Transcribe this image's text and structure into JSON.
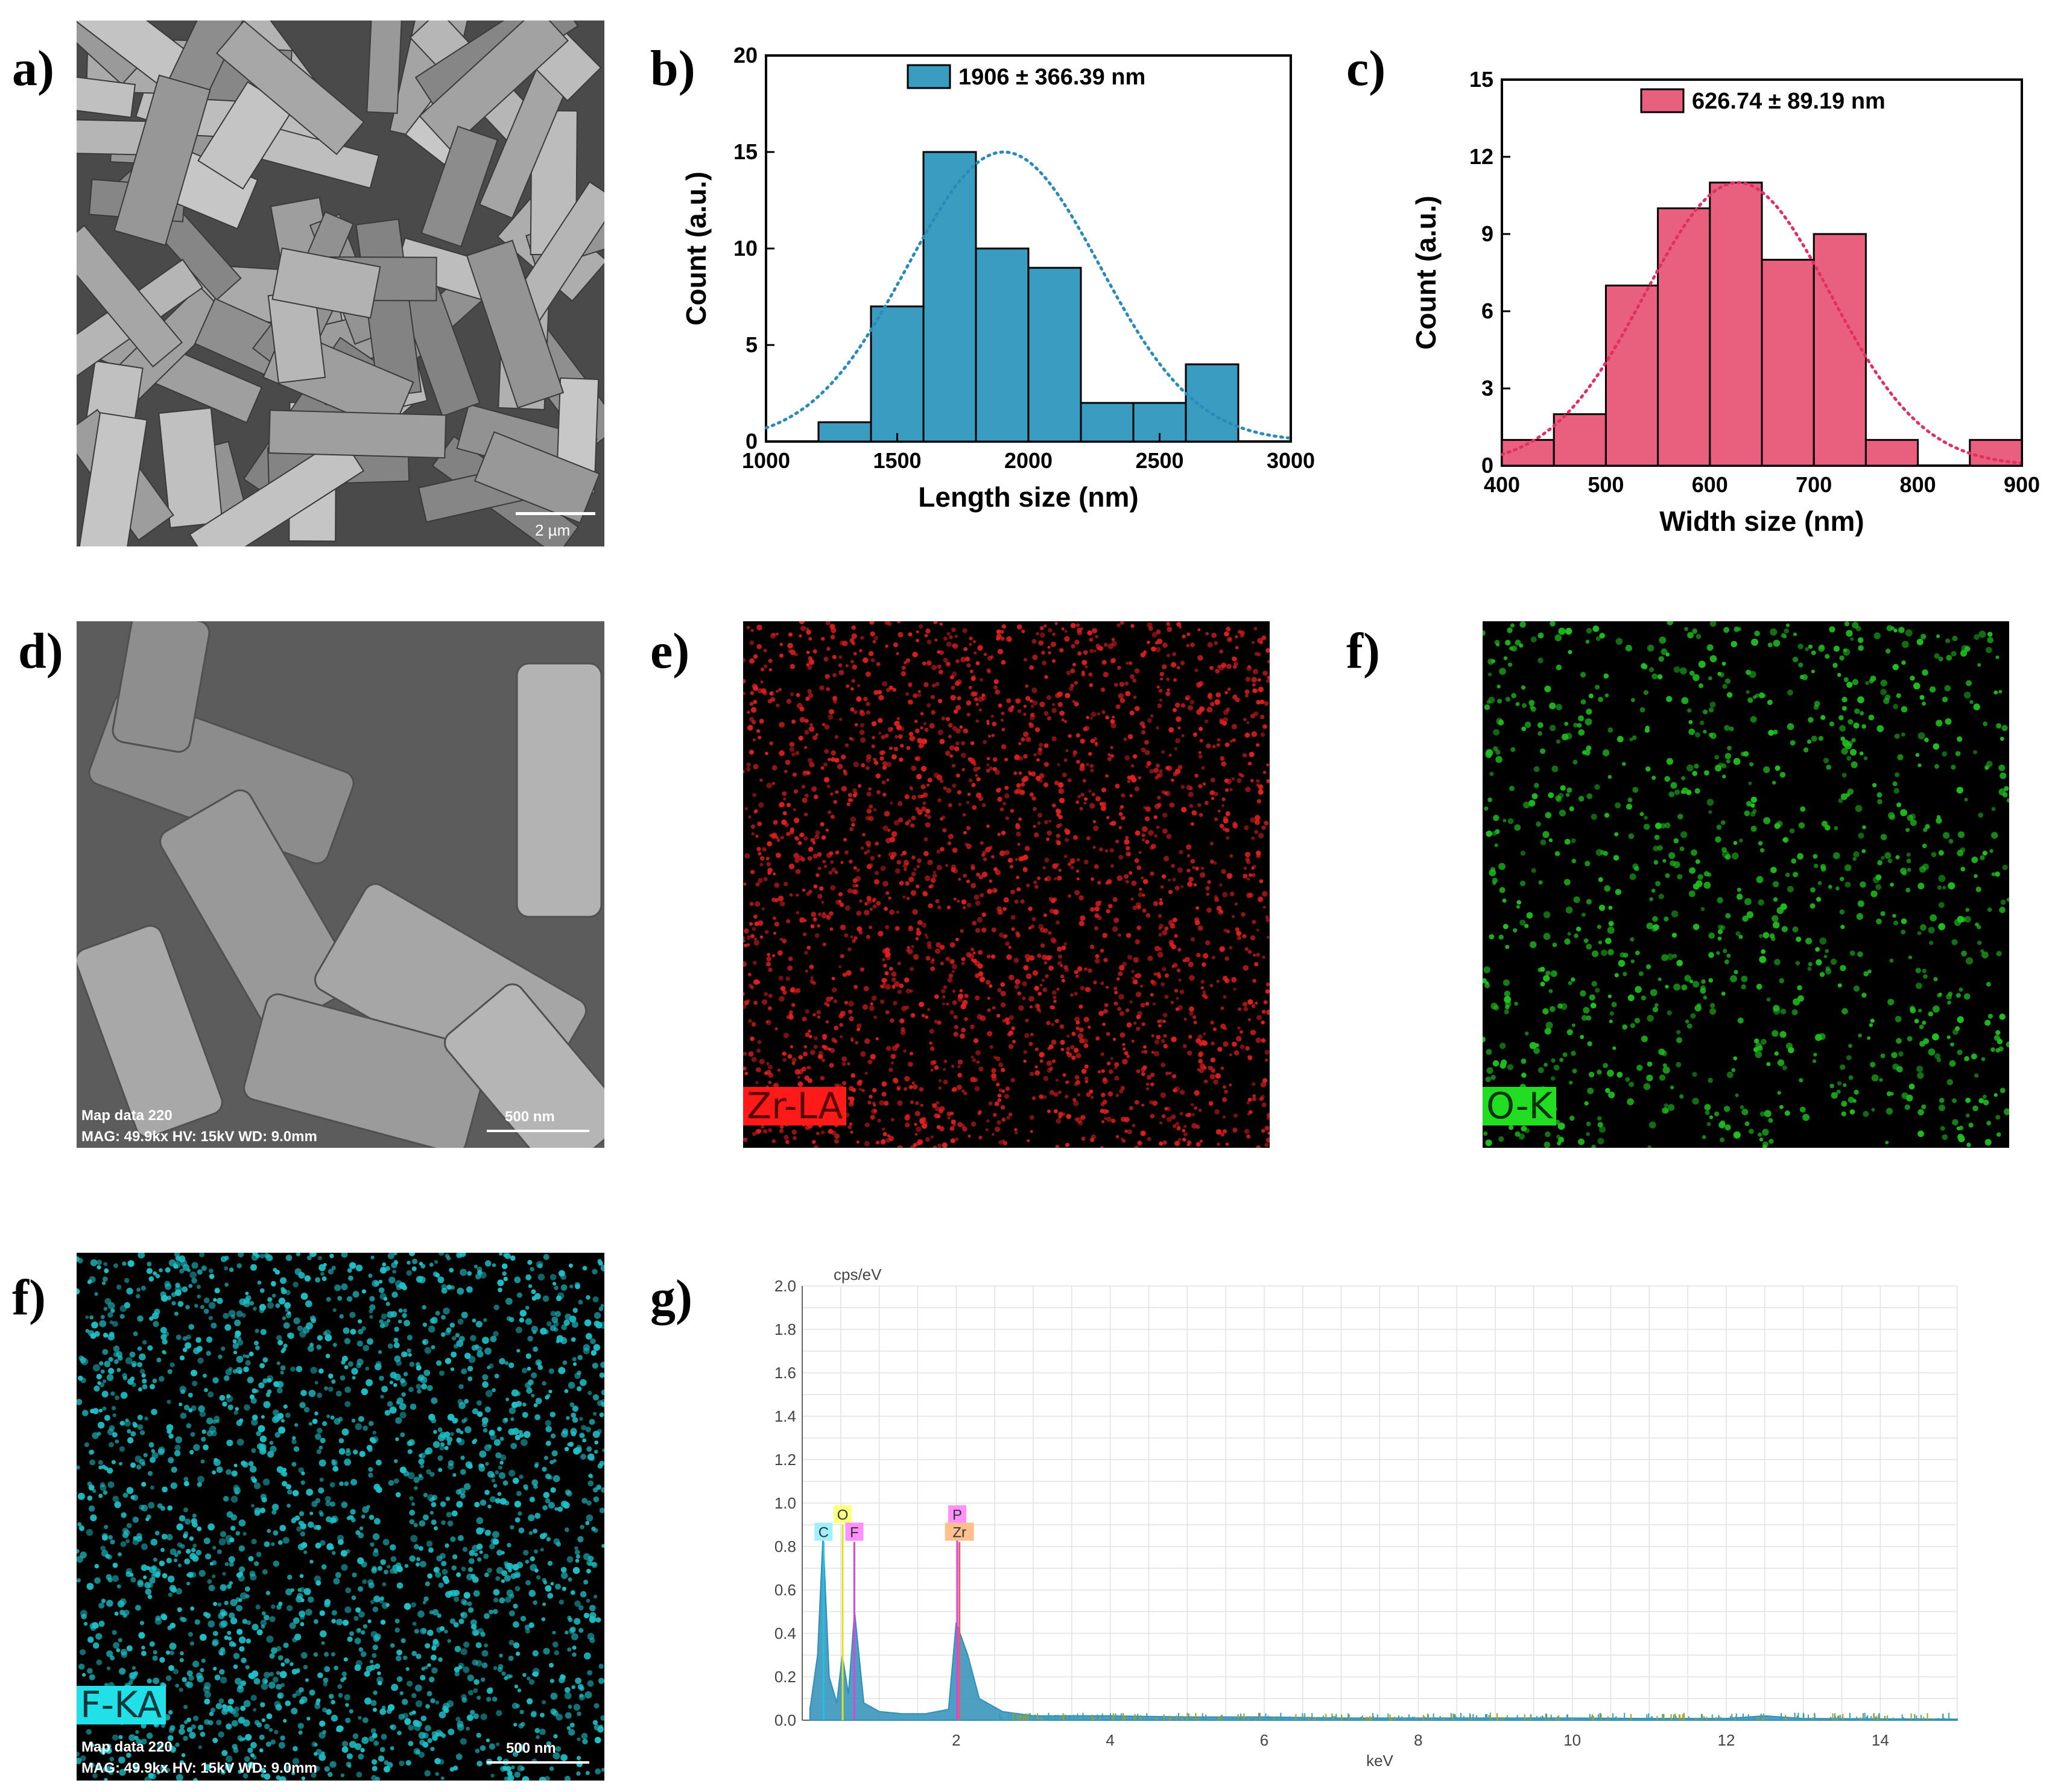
{
  "panel_labels": [
    "a)",
    "b)",
    "c)",
    "d)",
    "e)",
    "f)",
    "f)",
    "g)"
  ],
  "sem_a": {
    "scale_bar": "2 µm"
  },
  "sem_d": {
    "scale_bar": "500 nm",
    "info_line1": "Map data 220",
    "info_line2": "MAG: 49.9kx  HV: 15kV  WD: 9.0mm"
  },
  "map_e": {
    "tag": "Zr-LA",
    "dot_color": "#e02020",
    "tag_bg": "#ff1a1a",
    "tag_fg": "#5a0000"
  },
  "map_f": {
    "tag": "O-K",
    "dot_color": "#20c020",
    "tag_bg": "#22dd22",
    "tag_fg": "#003300"
  },
  "map_f2": {
    "tag": "F-KA",
    "dot_color": "#20c0c8",
    "tag_bg": "#22e0e8",
    "tag_fg": "#003a3c",
    "info_line1": "Map data 220",
    "info_line2": "MAG: 49.9kx  HV: 15kV  WD: 9.0mm",
    "scale_bar": "500 nm"
  },
  "chart_data": [
    {
      "id": "b",
      "type": "bar",
      "xlabel": "Length size (nm)",
      "ylabel": "Count (a.u.)",
      "xlim": [
        1000,
        3000
      ],
      "ylim": [
        0,
        20
      ],
      "xticks": [
        1000,
        1500,
        2000,
        2500,
        3000
      ],
      "yticks": [
        0,
        5,
        10,
        15,
        20
      ],
      "bin_width": 200,
      "bins": [
        1200,
        1400,
        1600,
        1800,
        2000,
        2200,
        2400,
        2600
      ],
      "values": [
        1,
        7,
        15,
        10,
        9,
        2,
        2,
        4
      ],
      "legend": "1906 ± 366.39 nm",
      "legend_position": "top-center",
      "fit": {
        "type": "gaussian",
        "mean": 1906,
        "sd": 366.39,
        "peak": 15
      },
      "color": "#3a9cc0",
      "fit_color": "#2a8ab8"
    },
    {
      "id": "c",
      "type": "bar",
      "xlabel": "Width size (nm)",
      "ylabel": "Count (a.u.)",
      "xlim": [
        400,
        900
      ],
      "ylim": [
        0,
        15
      ],
      "xticks": [
        400,
        500,
        600,
        700,
        800,
        900
      ],
      "yticks": [
        0,
        3,
        6,
        9,
        12,
        15
      ],
      "bin_width": 50,
      "bins": [
        400,
        450,
        500,
        550,
        600,
        650,
        700,
        750,
        800,
        850
      ],
      "values": [
        1,
        2,
        7,
        10,
        11,
        8,
        9,
        1,
        0,
        1
      ],
      "legend": "626.74 ± 89.19 nm",
      "legend_position": "top-center",
      "fit": {
        "type": "gaussian",
        "mean": 626.74,
        "sd": 89.19,
        "peak": 11
      },
      "color": "#e8607e",
      "fit_color": "#e03060"
    },
    {
      "id": "g",
      "type": "line",
      "xlabel": "keV",
      "ylabel": "cps/eV",
      "xlim": [
        0,
        15
      ],
      "ylim": [
        0,
        2.0
      ],
      "xticks": [
        2,
        4,
        6,
        8,
        10,
        12,
        14
      ],
      "yticks": [
        0.0,
        0.2,
        0.4,
        0.6,
        0.8,
        1.0,
        1.2,
        1.4,
        1.6,
        1.8,
        2.0
      ],
      "grid": true,
      "color": "#2f8fb8",
      "x": [
        0.1,
        0.2,
        0.27,
        0.35,
        0.45,
        0.52,
        0.6,
        0.68,
        0.8,
        1.0,
        1.3,
        1.6,
        1.9,
        2.0,
        2.05,
        2.15,
        2.3,
        2.6,
        3.0,
        4.0,
        5.0,
        6.0,
        7.0,
        8.0,
        9.0,
        10.0,
        11.0,
        12.0,
        12.5,
        13.0,
        14.0,
        15.0
      ],
      "y": [
        0.05,
        0.3,
        0.85,
        0.2,
        0.08,
        0.3,
        0.12,
        0.5,
        0.08,
        0.04,
        0.03,
        0.03,
        0.05,
        0.45,
        0.4,
        0.3,
        0.1,
        0.04,
        0.02,
        0.02,
        0.015,
        0.015,
        0.01,
        0.01,
        0.01,
        0.01,
        0.008,
        0.008,
        0.02,
        0.008,
        0.006,
        0.005
      ],
      "element_markers": [
        {
          "label": "C",
          "x": 0.277,
          "row": 1,
          "bg": "#a0f0ff",
          "line": "#20c0e0"
        },
        {
          "label": "O",
          "x": 0.525,
          "row": 0,
          "bg": "#ffff80",
          "line": "#e0e020"
        },
        {
          "label": "F",
          "x": 0.677,
          "row": 1,
          "bg": "#ff90ff",
          "line": "#e040e0"
        },
        {
          "label": "P",
          "x": 2.013,
          "row": 0,
          "bg": "#ff90ff",
          "line": "#e040e0"
        },
        {
          "label": "Zr",
          "x": 2.042,
          "row": 1,
          "bg": "#ffc090",
          "line": "#e06060"
        }
      ]
    }
  ]
}
